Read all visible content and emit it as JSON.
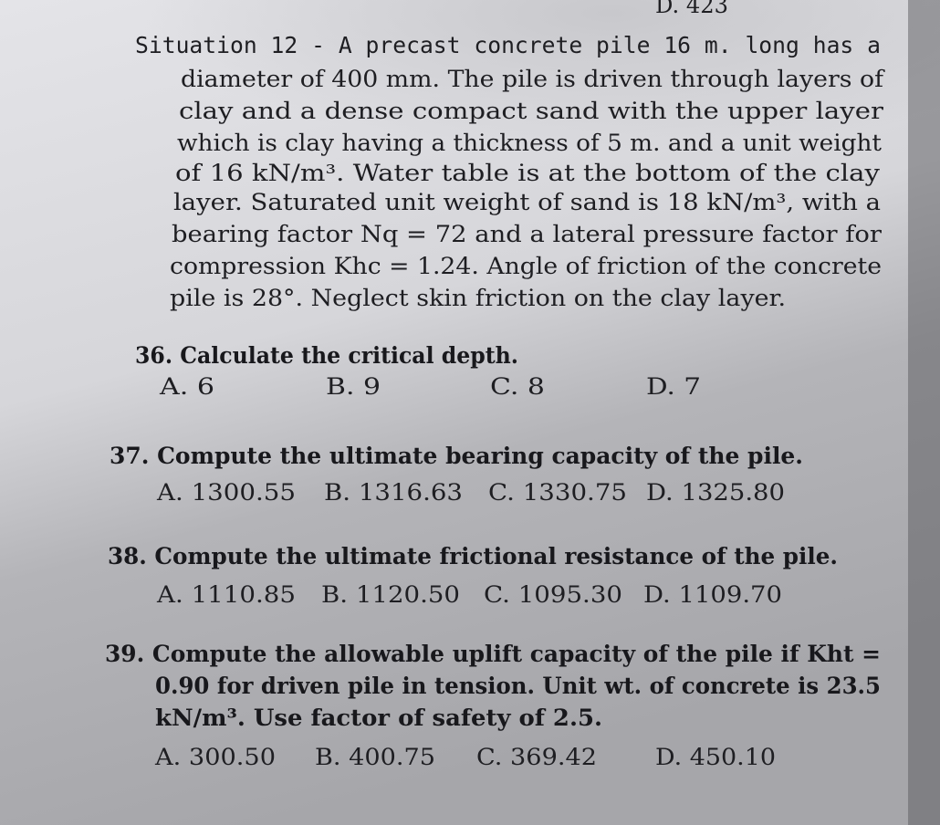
{
  "header_fragment": "D. 423",
  "situation": {
    "lines": [
      "Situation 12 - A precast concrete pile 16 m. long has a",
      "diameter of 400 mm. The pile is driven through layers of",
      "clay and a dense compact sand with the upper layer",
      "which is clay having a thickness of 5 m. and a unit weight",
      "of 16 kN/m³. Water table is at the bottom of the clay",
      "layer. Saturated unit weight of sand is 18 kN/m³, with a",
      "bearing factor Nq = 72 and a lateral pressure factor for",
      "compression Khc = 1.24. Angle of friction of the concrete",
      "pile is 28°. Neglect skin friction on the clay layer."
    ]
  },
  "questions": [
    {
      "lines": [
        "36. Calculate the critical depth."
      ],
      "choices": [
        "A. 6",
        "B. 9",
        "C. 8",
        "D. 7"
      ]
    },
    {
      "lines": [
        "37. Compute the ultimate bearing capacity of the pile."
      ],
      "choices": [
        "A. 1300.55",
        "B. 1316.63",
        "C. 1330.75",
        "D. 1325.80"
      ]
    },
    {
      "lines": [
        "38. Compute the ultimate frictional resistance of the pile."
      ],
      "choices": [
        "A. 1110.85",
        "B. 1120.50",
        "C. 1095.30",
        "D. 1109.70"
      ]
    },
    {
      "lines": [
        "39. Compute the allowable uplift capacity of the pile if Kht =",
        "0.90 for driven pile in tension. Unit wt. of concrete is 23.5",
        "kN/m³. Use factor of safety of 2.5."
      ],
      "choices": [
        "A. 300.50",
        "B. 400.75",
        "C. 369.42",
        "D. 450.10"
      ]
    }
  ]
}
